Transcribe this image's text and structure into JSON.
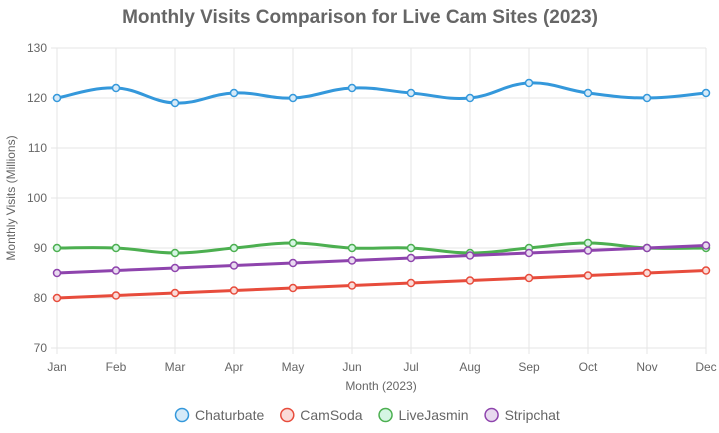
{
  "chart_data": {
    "type": "line",
    "title": "Monthly Visits Comparison for Live Cam Sites (2023)",
    "xlabel": "Month (2023)",
    "ylabel": "Monthly Visits (Millions)",
    "categories": [
      "Jan",
      "Feb",
      "Mar",
      "Apr",
      "May",
      "Jun",
      "Jul",
      "Aug",
      "Sep",
      "Oct",
      "Nov",
      "Dec"
    ],
    "ylim": [
      70,
      130
    ],
    "yticks": [
      70,
      80,
      90,
      100,
      110,
      120,
      130
    ],
    "grid": true,
    "legend_position": "bottom",
    "series": [
      {
        "name": "Chaturbate",
        "color": "#3498db",
        "fill": "#d6eaf8",
        "values": [
          120,
          122,
          119,
          121,
          120,
          122,
          121,
          120,
          123,
          121,
          120,
          121
        ]
      },
      {
        "name": "CamSoda",
        "color": "#e74c3c",
        "fill": "#fadbd8",
        "values": [
          80,
          80.5,
          81,
          81.5,
          82,
          82.5,
          83,
          83.5,
          84,
          84.5,
          85,
          85.5
        ]
      },
      {
        "name": "LiveJasmin",
        "color": "#4caf50",
        "fill": "#d5f5e3",
        "values": [
          90,
          90,
          89,
          90,
          91,
          90,
          90,
          89,
          90,
          91,
          90,
          90
        ]
      },
      {
        "name": "Stripchat",
        "color": "#8e44ad",
        "fill": "#e8daef",
        "values": [
          85,
          85.5,
          86,
          86.5,
          87,
          87.5,
          88,
          88.5,
          89,
          89.5,
          90,
          90.5
        ]
      }
    ]
  }
}
